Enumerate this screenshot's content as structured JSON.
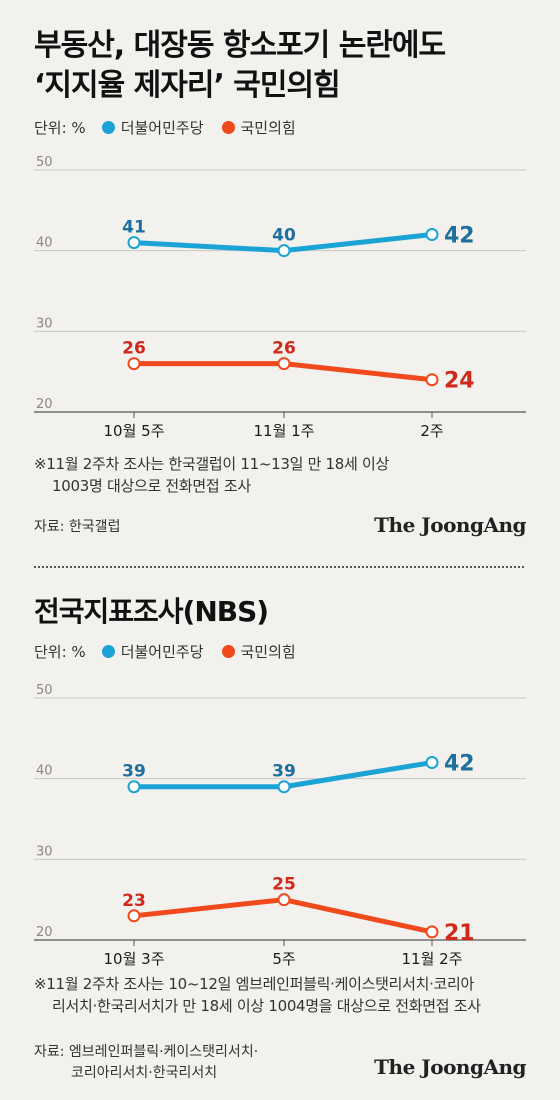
{
  "headline": {
    "line1": "부동산, 대장동 항소포기 논란에도",
    "line2": "‘지지율 제자리’ 국민의힘"
  },
  "colors": {
    "democratic": "#1aa3d4",
    "ppp": "#f04a1c",
    "democratic_label": "#1e6f9f",
    "ppp_label": "#d0281a"
  },
  "section1": {
    "unit": "단위: %",
    "legend": [
      "더불어민주당",
      "국민의힘"
    ],
    "note_line1": "※11월 2주차 조사는 한국갤럽이 11~13일 만 18세 이상",
    "note_line2": "1003명 대상으로 전화면접 조사",
    "source": "자료: 한국갤럽",
    "brand": "The JoongAng"
  },
  "section2": {
    "title": "전국지표조사(NBS)",
    "unit": "단위: %",
    "legend": [
      "더불어민주당",
      "국민의힘"
    ],
    "note_line1": "※11월 2주차 조사는 10~12일 엠브레인퍼블릭·케이스탯리서치·코리아",
    "note_line2": "리서치·한국리서치가 만 18세 이상 1004명을 대상으로 전화면접 조사",
    "source_line1": "자료: 엠브레인퍼블릭·케이스탯리서치·",
    "source_line2": "코리아리서치·한국리서치",
    "brand": "The JoongAng"
  },
  "chart_data": [
    {
      "type": "line",
      "categories": [
        "10월 5주",
        "11월 1주",
        "2주"
      ],
      "series": [
        {
          "name": "더불어민주당",
          "values": [
            41,
            40,
            42
          ]
        },
        {
          "name": "국민의힘",
          "values": [
            26,
            26,
            24
          ]
        }
      ],
      "yticks": [
        20,
        30,
        40,
        50
      ],
      "ylim": [
        20,
        50
      ],
      "grid": true,
      "legend": "top-left"
    },
    {
      "type": "line",
      "categories": [
        "10월 3주",
        "5주",
        "11월 2주"
      ],
      "series": [
        {
          "name": "더불어민주당",
          "values": [
            39,
            39,
            42
          ]
        },
        {
          "name": "국민의힘",
          "values": [
            23,
            25,
            21
          ]
        }
      ],
      "yticks": [
        20,
        30,
        40,
        50
      ],
      "ylim": [
        20,
        50
      ],
      "grid": true,
      "legend": "top-left"
    }
  ]
}
